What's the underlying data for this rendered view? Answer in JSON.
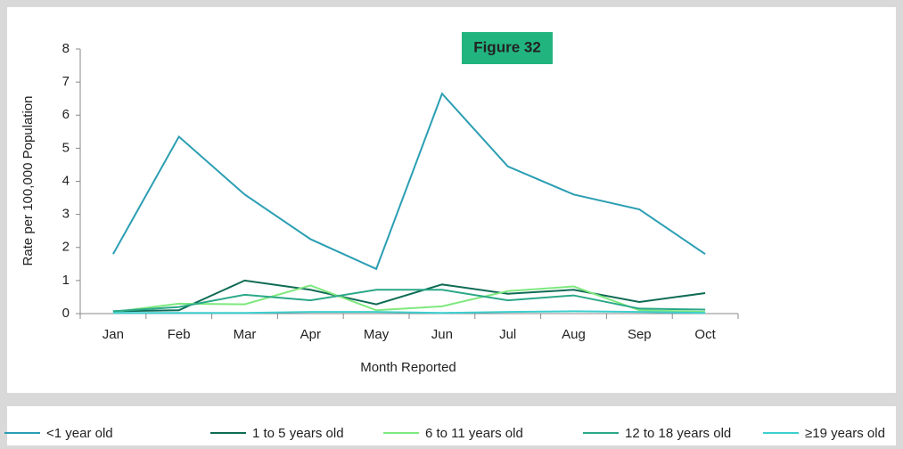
{
  "chart_data": {
    "type": "line",
    "title": "Figure 32",
    "x_label": "Month Reported",
    "y_label": "Rate per 100,000 Population",
    "categories": [
      "Jan",
      "Feb",
      "Mar",
      "Apr",
      "May",
      "Jun",
      "Jul",
      "Aug",
      "Sep",
      "Oct"
    ],
    "ylim": [
      0,
      8
    ],
    "yticks": [
      0,
      1,
      2,
      3,
      4,
      5,
      6,
      7,
      8
    ],
    "grid": false,
    "legend": "bottom",
    "series": [
      {
        "name": "<1 year old",
        "color": "#2b9eb3",
        "values": [
          1.8,
          5.35,
          3.6,
          2.25,
          1.35,
          6.65,
          4.45,
          3.6,
          3.15,
          1.8
        ]
      },
      {
        "name": "1 to 5 years old",
        "color": "#0f6b55",
        "values": [
          0.07,
          0.1,
          1.0,
          0.72,
          0.28,
          0.88,
          0.6,
          0.72,
          0.35,
          0.62
        ]
      },
      {
        "name": "6 to 11 years old",
        "color": "#7ee87e",
        "values": [
          0.05,
          0.3,
          0.28,
          0.85,
          0.1,
          0.22,
          0.68,
          0.82,
          0.1,
          0.05
        ]
      },
      {
        "name": "12 to 18 years old",
        "color": "#2aa888",
        "values": [
          0.07,
          0.2,
          0.57,
          0.4,
          0.72,
          0.72,
          0.4,
          0.55,
          0.15,
          0.12
        ]
      },
      {
        "name": "≥19 years old",
        "color": "#3ccfcf",
        "values": [
          0.02,
          0.02,
          0.02,
          0.05,
          0.05,
          0.02,
          0.05,
          0.07,
          0.05,
          0.02
        ]
      }
    ]
  }
}
